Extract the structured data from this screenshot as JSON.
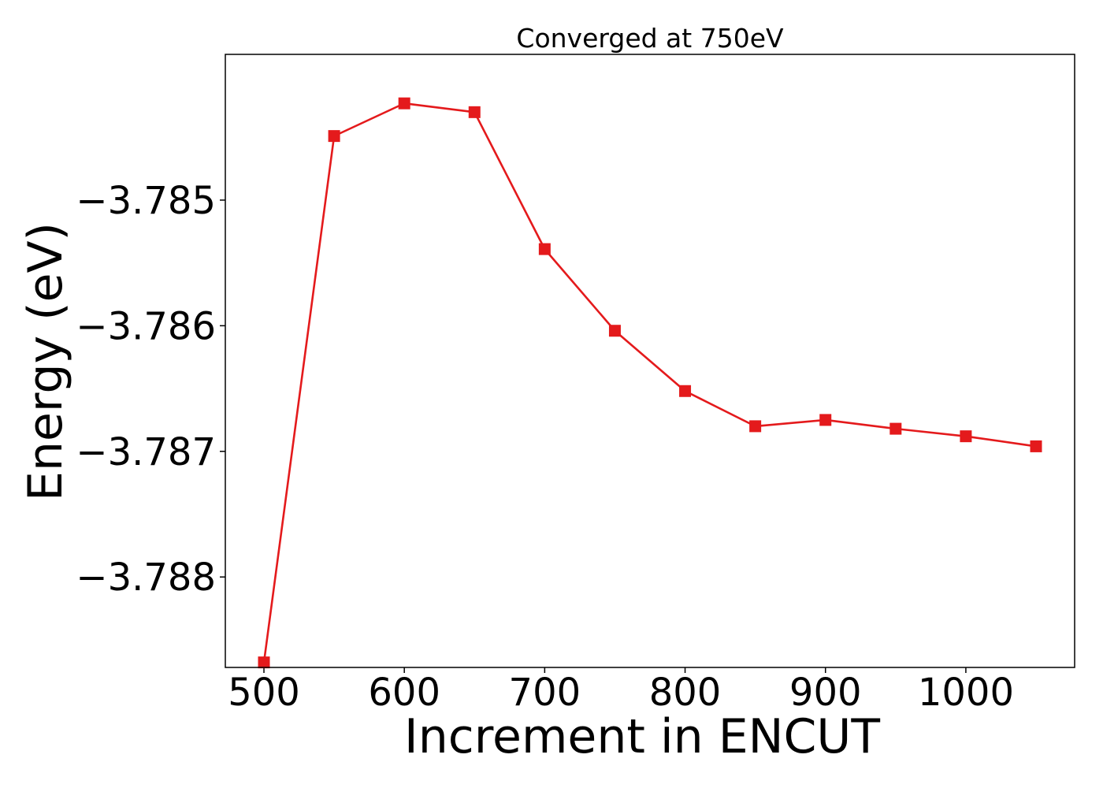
{
  "chart_data": {
    "type": "line",
    "title": "Converged at 750eV",
    "xlabel": "Increment in ENCUT",
    "ylabel": "Energy (eV)",
    "xlim": [
      472.5,
      1077.5
    ],
    "ylim": [
      -3.78872,
      -3.78384
    ],
    "xticks": [
      500,
      600,
      700,
      800,
      900,
      1000
    ],
    "xtick_labels": [
      "500",
      "600",
      "700",
      "800",
      "900",
      "1000"
    ],
    "yticks": [
      -3.785,
      -3.786,
      -3.787,
      -3.788
    ],
    "ytick_labels": [
      "−3.785",
      "−3.786",
      "−3.787",
      "−3.788"
    ],
    "grid": false,
    "series": [
      {
        "color": "#e41a1c",
        "marker": "square",
        "x": [
          500,
          550,
          600,
          650,
          700,
          750,
          800,
          850,
          900,
          950,
          1000,
          1050
        ],
        "y": [
          -3.78868,
          -3.78449,
          -3.78423,
          -3.7843,
          -3.78539,
          -3.78604,
          -3.78652,
          -3.7868,
          -3.78675,
          -3.78682,
          -3.78688,
          -3.78696
        ]
      }
    ]
  }
}
